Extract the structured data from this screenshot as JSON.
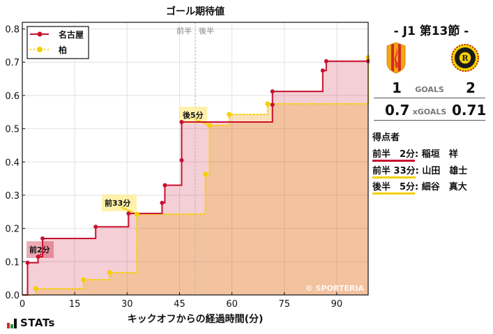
{
  "chart_data": {
    "type": "line",
    "title": "ゴール期待値",
    "xlabel": "キックオフからの経過時間(分)",
    "ylabel": "",
    "xlim": [
      0,
      99
    ],
    "ylim": [
      0,
      0.82
    ],
    "x_ticks": [
      0,
      15,
      30,
      45,
      60,
      75,
      90
    ],
    "y_ticks": [
      "0.0",
      "0.1",
      "0.2",
      "0.3",
      "0.4",
      "0.5",
      "0.6",
      "0.7",
      "0.8"
    ],
    "grid": true,
    "legend_position": "upper left",
    "halftime_line_x": 49.5,
    "halftime_labels": [
      "前半",
      "後半"
    ],
    "series": [
      {
        "name": "名古屋",
        "color": "#c8102e",
        "style": "solid-step",
        "points": [
          [
            1.5,
            0.097
          ],
          [
            4.5,
            0.115
          ],
          [
            5.8,
            0.17
          ],
          [
            21,
            0.205
          ],
          [
            30.4,
            0.245
          ],
          [
            40,
            0.277
          ],
          [
            40.8,
            0.33
          ],
          [
            45.6,
            0.405
          ],
          [
            45.6,
            0.52
          ],
          [
            71.6,
            0.572
          ],
          [
            71.6,
            0.612
          ],
          [
            86,
            0.675
          ],
          [
            87,
            0.703
          ],
          [
            99,
            0.703
          ]
        ]
      },
      {
        "name": "柏",
        "color": "#f5d000",
        "style": "dotted-step",
        "points": [
          [
            3.8,
            0.019
          ],
          [
            17.5,
            0.046
          ],
          [
            25,
            0.067
          ],
          [
            32.8,
            0.243
          ],
          [
            52.4,
            0.363
          ],
          [
            53.6,
            0.51
          ],
          [
            59.2,
            0.543
          ],
          [
            70.2,
            0.575
          ],
          [
            99,
            0.714
          ]
        ]
      }
    ],
    "annotations": [
      {
        "text": "前2分",
        "x": 4.5,
        "y": 0.115,
        "team": "名古屋"
      },
      {
        "text": "前33分",
        "x": 32.8,
        "y": 0.243,
        "team": "柏"
      },
      {
        "text": "後5分",
        "x": 53.6,
        "y": 0.51,
        "team": "柏"
      }
    ],
    "watermark": "© SPORTERIA"
  },
  "legend": {
    "home_label": "名古屋",
    "away_label": "柏"
  },
  "match": {
    "round": "-  J1 第13節  -",
    "home_goals": "1",
    "away_goals": "2",
    "goals_label": "GOALS",
    "home_xg": "0.7",
    "away_xg": "0.71",
    "xg_label": "xGOALS",
    "home_color": "#c8102e",
    "away_color": "#f5d000"
  },
  "scorers": {
    "title": "得点者",
    "items": [
      {
        "time": "前半　2分",
        "name": ": 稲垣　祥",
        "team": "home"
      },
      {
        "time": "前半 33分",
        "name": ": 山田　雄士",
        "team": "away"
      },
      {
        "time": "後半　5分",
        "name": ": 細谷　真大",
        "team": "away"
      }
    ]
  },
  "branding": {
    "logo_text": "STATs"
  }
}
